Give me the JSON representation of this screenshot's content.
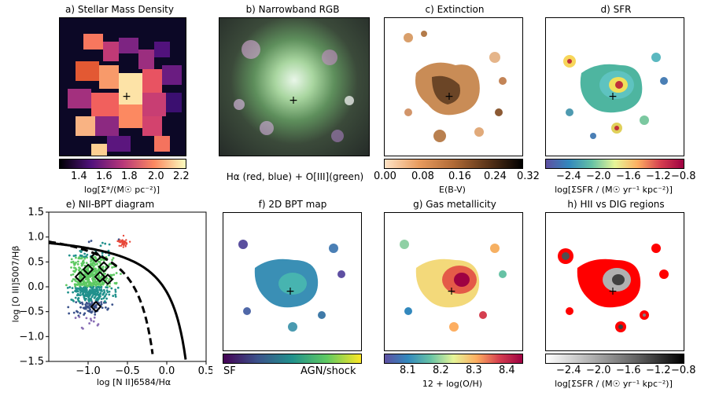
{
  "panels": {
    "a": {
      "title": "a) Stellar Mass Density",
      "cbar_label": "log[Σ*/(M☉ pc⁻²)]",
      "ticks": [
        "1.4",
        "1.6",
        "1.8",
        "2.0",
        "2.2"
      ]
    },
    "b": {
      "title": "b) Narrowband RGB",
      "caption": "Hα (red, blue) + O[III](green)"
    },
    "c": {
      "title": "c) Extinction",
      "cbar_label": "E(B-V)",
      "ticks": [
        "0.00",
        "0.08",
        "0.16",
        "0.24",
        "0.32"
      ]
    },
    "d": {
      "title": "d) SFR",
      "cbar_label": "log[ΣSFR / (M☉ yr⁻¹ kpc⁻²)]",
      "ticks": [
        "−2.4",
        "−2.0",
        "−1.6",
        "−1.2",
        "−0.8"
      ]
    },
    "e": {
      "title": "e) NII-BPT diagram",
      "xlabel": "log [N II]6584/Hα",
      "ylabel": "log [O III]5007/Hβ"
    },
    "f": {
      "title": "f) 2D BPT map",
      "cbar_left": "SF",
      "cbar_right": "AGN/shock"
    },
    "g": {
      "title": "g) Gas metallicity",
      "cbar_label": "12 + log(O/H)",
      "ticks": [
        "8.1",
        "8.2",
        "8.3",
        "8.4"
      ]
    },
    "h": {
      "title": "h) HII vs DIG regions",
      "cbar_label": "log[ΣSFR / (M☉ yr⁻¹ kpc⁻²)]",
      "ticks": [
        "−2.4",
        "−2.0",
        "−1.6",
        "−1.2",
        "−0.8"
      ]
    }
  },
  "chart_data": {
    "type": "scatter",
    "title": "e) NII-BPT diagram",
    "xlabel": "log [N II]6584/Hα",
    "ylabel": "log [O III]5007/Hβ",
    "xlim": [
      -1.5,
      0.5
    ],
    "ylim": [
      -1.5,
      1.5
    ],
    "xticks": [
      "−1.0",
      "−0.5",
      "0.0",
      "0.5"
    ],
    "yticks": [
      "1.5",
      "1.0",
      "0.5",
      "0.0",
      "−0.5",
      "−1.0",
      "−1.5"
    ],
    "diamonds": [
      [
        -0.9,
        0.6
      ],
      [
        -0.8,
        0.4
      ],
      [
        -1.0,
        0.35
      ],
      [
        -1.1,
        0.2
      ],
      [
        -0.85,
        0.2
      ],
      [
        -0.75,
        0.15
      ],
      [
        -0.9,
        -0.4
      ]
    ]
  }
}
